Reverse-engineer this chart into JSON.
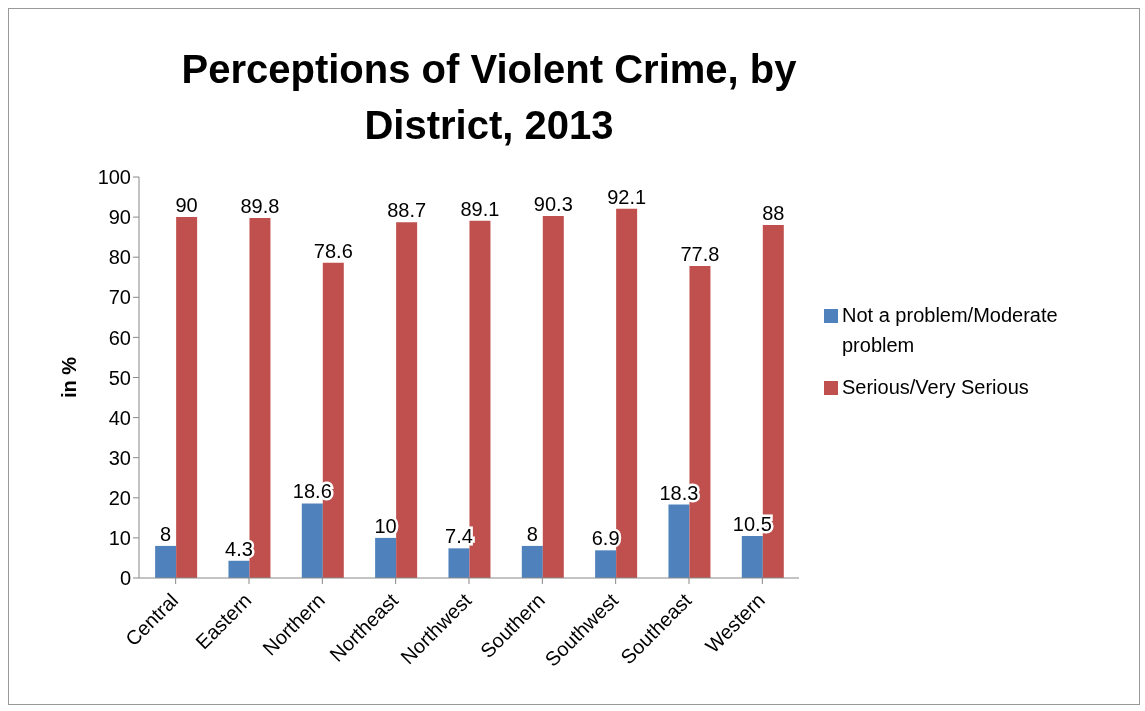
{
  "chart_data": {
    "type": "bar",
    "title": "Perceptions of Violent Crime, by District, 2013",
    "ylabel": "in %",
    "categories": [
      "Central",
      "Eastern",
      "Northern",
      "Northeast",
      "Northwest",
      "Southern",
      "Southwest",
      "Southeast",
      "Western"
    ],
    "series": [
      {
        "name": "Not a problem/Moderate problem",
        "color": "#4f81bd",
        "values": [
          8,
          4.3,
          18.6,
          10,
          7.4,
          8,
          6.9,
          18.3,
          10.5
        ]
      },
      {
        "name": "Serious/Very Serious",
        "color": "#c0504d",
        "values": [
          90,
          89.8,
          78.6,
          88.7,
          89.1,
          90.3,
          92.1,
          77.8,
          88
        ]
      }
    ],
    "ylim": [
      0,
      100
    ],
    "yticks": [
      0,
      10,
      20,
      30,
      40,
      50,
      60,
      70,
      80,
      90,
      100
    ],
    "grid": false,
    "legend": "right",
    "data_labels": true
  }
}
